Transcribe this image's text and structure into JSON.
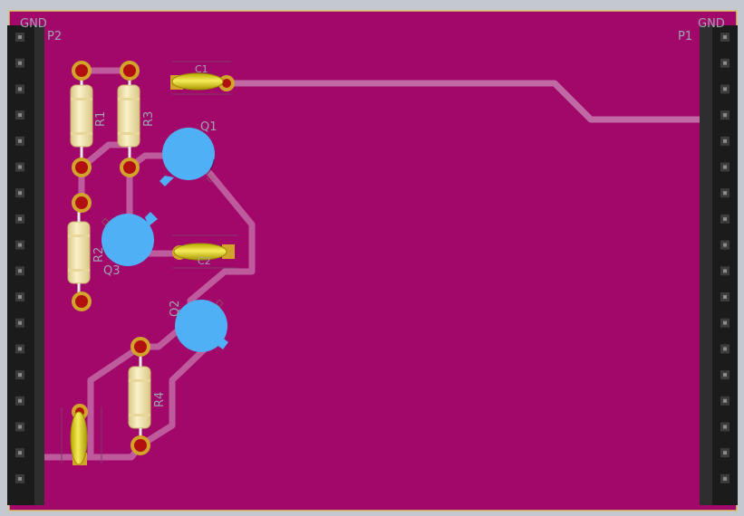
{
  "board": {
    "colors": {
      "copper_pour": "#a2086a",
      "track": "#c46aa6",
      "outline": "#d8c46a",
      "background": "#c4c8cf",
      "header_body": "#1b1b1b",
      "header_pin": "#777777",
      "silkscreen": "#9fa4b3",
      "resistor_body": "#f4e7b0",
      "capacitor_body": "#e4d400",
      "transistor_body": "#50b0f5",
      "pad_ring": "#d2a52a",
      "pad_hole": "#b21010"
    },
    "headers": {
      "left": {
        "ref": "P2",
        "net": "GND",
        "pins": 18
      },
      "right": {
        "ref": "P1",
        "net": "GND",
        "pins": 18
      }
    },
    "components": {
      "r1": "R1",
      "r2": "R2",
      "r3": "R3",
      "r4": "R4",
      "c1": "C1",
      "c2": "C2",
      "q1": "Q1",
      "q2": "Q2",
      "q3": "Q3"
    }
  }
}
